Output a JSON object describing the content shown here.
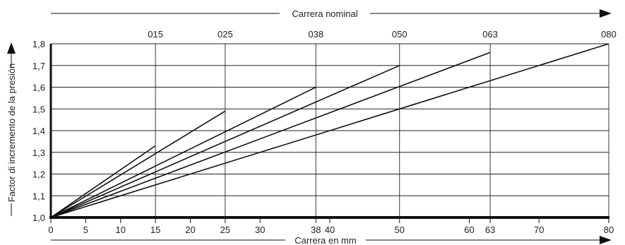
{
  "chart_data": {
    "type": "line",
    "top_axis_label": "Carrera nominal",
    "xlabel": "Carrera en mm",
    "ylabel": "Factor di incremento de la presión",
    "xlim": [
      0,
      80
    ],
    "ylim": [
      1.0,
      1.8
    ],
    "grid": true,
    "x_ticks": [
      0,
      5,
      10,
      15,
      20,
      25,
      30,
      38,
      40,
      50,
      60,
      63,
      70,
      80
    ],
    "x_tick_labels": [
      "0",
      "5",
      "10",
      "15",
      "20",
      "25",
      "30",
      "38",
      "40",
      "50",
      "60",
      "63",
      "70",
      "80"
    ],
    "y_ticks": [
      1.0,
      1.1,
      1.2,
      1.3,
      1.4,
      1.5,
      1.6,
      1.7,
      1.8
    ],
    "y_tick_labels": [
      "1,0",
      "1,1",
      "1,2",
      "1,3",
      "1,4",
      "1,5",
      "1,6",
      "1,7",
      "1,8"
    ],
    "top_ticks": [
      {
        "x": 15,
        "label": "015"
      },
      {
        "x": 25,
        "label": "025"
      },
      {
        "x": 38,
        "label": "038"
      },
      {
        "x": 50,
        "label": "050"
      },
      {
        "x": 63,
        "label": "063"
      },
      {
        "x": 80,
        "label": "080"
      }
    ],
    "series": [
      {
        "points": [
          [
            0,
            1.0
          ],
          [
            15,
            1.33
          ]
        ]
      },
      {
        "points": [
          [
            0,
            1.0
          ],
          [
            25,
            1.49
          ]
        ]
      },
      {
        "points": [
          [
            0,
            1.0
          ],
          [
            38,
            1.6
          ]
        ]
      },
      {
        "points": [
          [
            0,
            1.0
          ],
          [
            50,
            1.7
          ]
        ]
      },
      {
        "points": [
          [
            0,
            1.0
          ],
          [
            63,
            1.76
          ]
        ]
      },
      {
        "points": [
          [
            0,
            1.0
          ],
          [
            80,
            1.8
          ]
        ]
      }
    ]
  }
}
